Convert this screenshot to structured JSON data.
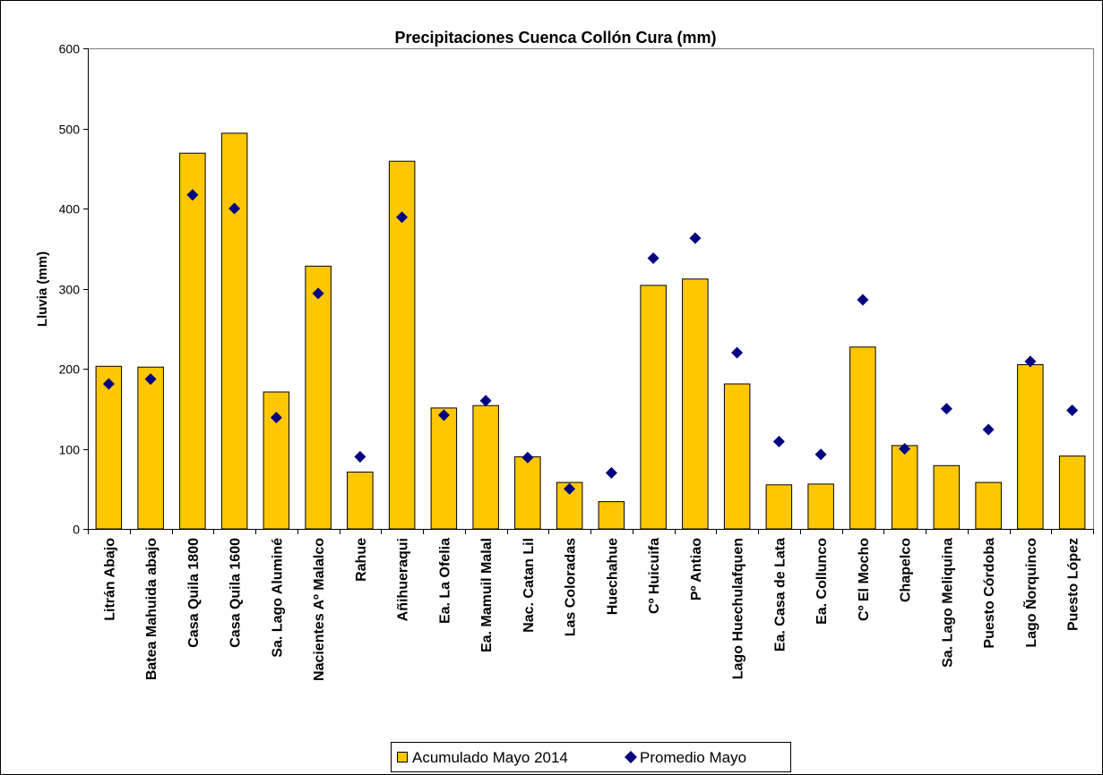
{
  "chart_data": {
    "type": "bar",
    "title": "Precipitaciones Cuenca Collón Cura (mm)",
    "xlabel": "",
    "ylabel": "Lluvia (mm)",
    "ylim": [
      0,
      600
    ],
    "yticks": [
      0,
      100,
      200,
      300,
      400,
      500,
      600
    ],
    "grid": false,
    "legend_position": "bottom",
    "categories": [
      "Litrán Abajo",
      "Batea Mahuida abajo",
      "Casa Quila 1800",
      "Casa Quila 1600",
      "Sa. Lago Aluminé",
      "Nacientes Aº Malalco",
      "Rahue",
      "Añihueraqui",
      "Ea. La Ofelia",
      "Ea. Mamuil Malal",
      "Nac. Catan Lil",
      "Las Coloradas",
      "Huechahue",
      "Cº Huicuifa",
      "Pº Antiao",
      "Lago Huechulafquen",
      "Ea. Casa de Lata",
      "Ea. Collunco",
      "Cº El Mocho",
      "Chapelco",
      "Sa. Lago Meliquina",
      "Puesto Córdoba",
      "Lago Ñorquinco",
      "Puesto López"
    ],
    "series": [
      {
        "name": "Acumulado Mayo 2014",
        "kind": "bar",
        "color": "#FFC700",
        "values": [
          203,
          202,
          469,
          494,
          171,
          328,
          71,
          459,
          151,
          154,
          90,
          58,
          34,
          304,
          312,
          181,
          55,
          56,
          227,
          104,
          79,
          58,
          205,
          91
        ]
      },
      {
        "name": "Promedio Mayo",
        "kind": "scatter",
        "marker": "diamond",
        "color": "#000080",
        "values": [
          181,
          187,
          417,
          400,
          139,
          294,
          90,
          389,
          142,
          160,
          89,
          50,
          70,
          338,
          363,
          220,
          109,
          93,
          286,
          100,
          150,
          124,
          209,
          148
        ]
      }
    ]
  }
}
